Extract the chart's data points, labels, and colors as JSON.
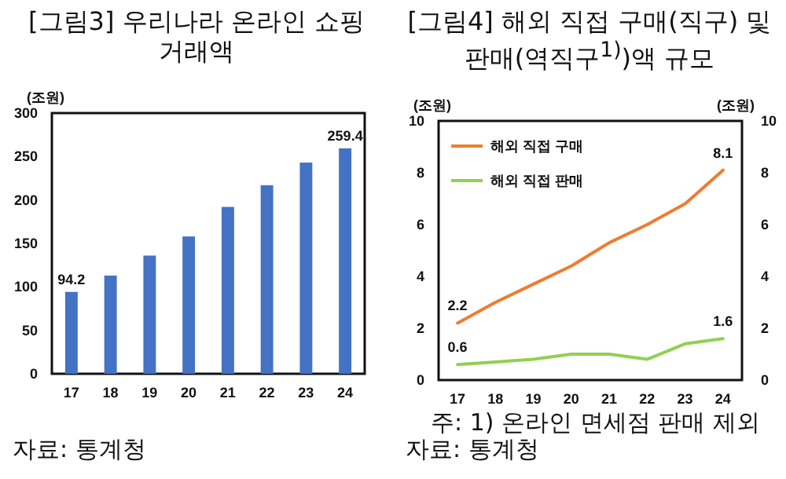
{
  "chart_data": [
    {
      "type": "bar",
      "title": "[그림3] 우리나라 온라인 쇼핑 거래액",
      "ylabel": "(조원)",
      "categories": [
        "17",
        "18",
        "19",
        "20",
        "21",
        "22",
        "23",
        "24"
      ],
      "series": [
        {
          "color": "#4472c4",
          "values": [
            94.2,
            113,
            136,
            158,
            192,
            217,
            243,
            259.4
          ],
          "value_labels": [
            "94.2",
            null,
            null,
            null,
            null,
            null,
            null,
            "259.4"
          ]
        }
      ],
      "ylim": [
        0,
        300
      ],
      "yticks": [
        0,
        50,
        100,
        150,
        200,
        250,
        300
      ],
      "annotations": [
        "자료: 통계청"
      ]
    },
    {
      "type": "line",
      "title": "[그림4] 해외 직접 구매(직구) 및 판매(역직구$^{1)}$)액 규모",
      "ylabel": "(조원)",
      "y2label": "(조원)",
      "categories": [
        "17",
        "18",
        "19",
        "20",
        "21",
        "22",
        "23",
        "24"
      ],
      "series": [
        {
          "name": "해외 직접 구매",
          "color": "#ed7d31",
          "values": [
            2.2,
            3.0,
            3.7,
            4.4,
            5.3,
            6.0,
            6.8,
            8.1
          ],
          "value_labels": [
            "2.2",
            null,
            null,
            null,
            null,
            null,
            null,
            "8.1"
          ]
        },
        {
          "name": "해외 직접 판매",
          "color": "#92d050",
          "values": [
            0.6,
            0.7,
            0.8,
            1.0,
            1.0,
            0.8,
            1.4,
            1.6
          ],
          "value_labels": [
            "0.6",
            null,
            null,
            null,
            null,
            null,
            null,
            "1.6"
          ]
        }
      ],
      "ylim": [
        0,
        10
      ],
      "yticks": [
        0,
        2,
        4,
        6,
        8,
        10
      ],
      "y2lim": [
        0,
        10
      ],
      "y2ticks": [
        0,
        2,
        4,
        6,
        8,
        10
      ],
      "legend": "top left",
      "annotations": [
        "주: 1) 온라인 면세점 판매 제외",
        "자료: 통계청"
      ]
    }
  ]
}
